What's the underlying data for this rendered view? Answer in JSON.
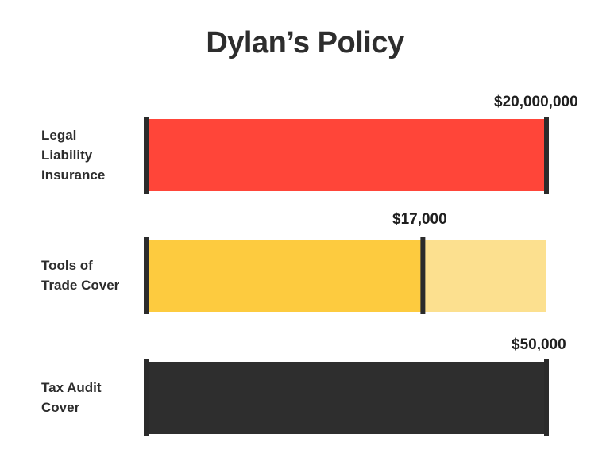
{
  "chart_data": {
    "type": "bar",
    "title": "Dylan’s Policy",
    "rows": [
      {
        "label_lines": [
          "Legal",
          "Liability",
          "Insurance"
        ],
        "value_label": "$20,000,000",
        "fill_fraction": 1.0,
        "color": "#ff4539",
        "track_color": null
      },
      {
        "label_lines": [
          "Tools of",
          "Trade Cover"
        ],
        "value_label": "$17,000",
        "fill_fraction": 0.69,
        "color": "#fdcb3f",
        "track_color": "#fce08f"
      },
      {
        "label_lines": [
          "Tax Audit",
          "Cover"
        ],
        "value_label": "$50,000",
        "fill_fraction": 1.0,
        "color": "#2e2e2e",
        "track_color": null
      }
    ],
    "marker_color": "#2b2b2b"
  }
}
